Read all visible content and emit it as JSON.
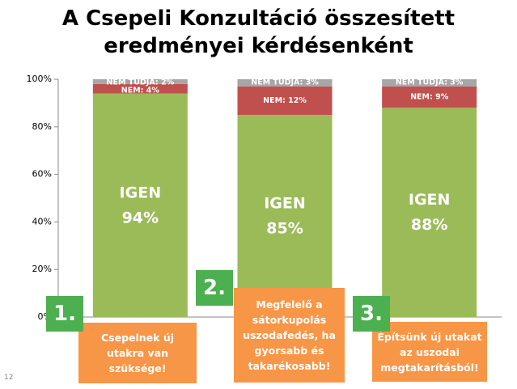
{
  "chart_data": {
    "type": "stacked_bar",
    "title": "A Csepeli Konzultáció összesített eredményei kérdésenként",
    "categories": [
      "Csepelnek új utakra van szüksége!",
      "Megfelelő a sátorkupolás uszodafedés, ha gyorsabb és takarékosabb!",
      "Építsünk új utakat az uszodai megtakarításból!"
    ],
    "question_numbers": [
      "1.",
      "2.",
      "3."
    ],
    "series": [
      {
        "name": "IGEN",
        "color": "#9bbb59",
        "values": [
          94,
          85,
          88
        ],
        "value_labels": [
          "94%",
          "85%",
          "88%"
        ]
      },
      {
        "name": "NEM",
        "color": "#c0504d",
        "values": [
          4,
          12,
          9
        ],
        "value_labels": [
          "NEM: 4%",
          "NEM: 12%",
          "NEM: 9%"
        ]
      },
      {
        "name": "NEM TUDJA",
        "color": "#a6a6a6",
        "values": [
          2,
          3,
          3
        ],
        "value_labels": [
          "NEM TUDJA: 2%",
          "NEM TUDJA: 3%",
          "NEM TUDJA: 3%"
        ]
      }
    ],
    "ylim": [
      0,
      100
    ],
    "yticks": [
      {
        "value": 0,
        "label": "0%"
      },
      {
        "value": 20,
        "label": "20%"
      },
      {
        "value": 40,
        "label": "40%"
      },
      {
        "value": 60,
        "label": "60%"
      },
      {
        "value": 80,
        "label": "80%"
      },
      {
        "value": 100,
        "label": "100%"
      }
    ],
    "grid": false,
    "page_number": "12"
  }
}
